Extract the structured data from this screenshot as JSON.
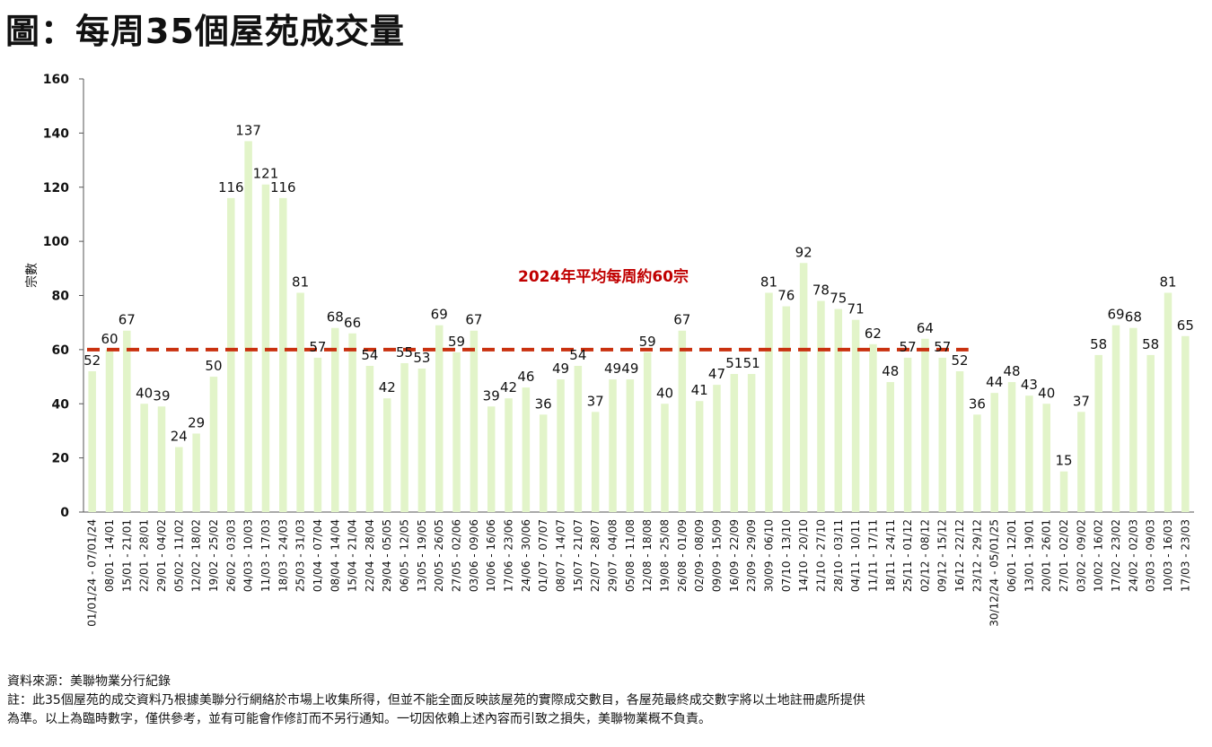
{
  "title": "圖：每周35個屋苑成交量",
  "footer": {
    "source": "資料來源：美聯物業分行紀錄",
    "note_line1": "註：此35個屋苑的成交資料乃根據美聯分行網絡於市場上收集所得，但並不能全面反映該屋苑的實際成交數目，各屋苑最終成交數字將以土地註冊處所提供",
    "note_line2": "為準。以上為臨時數字，僅供參考，並有可能會作修訂而不另行通知。一切因依賴上述內容而引致之損失，美聯物業概不負責。"
  },
  "chart_data": {
    "type": "bar",
    "title": "",
    "xlabel": "",
    "ylabel": "宗數",
    "ylim": [
      0,
      160
    ],
    "yticks": [
      0,
      20,
      40,
      60,
      80,
      100,
      120,
      140,
      160
    ],
    "grid": false,
    "bar_color": "#e2f4c9",
    "reference_line": {
      "value": 60,
      "label": "2024年平均每周約60宗",
      "color": "#c9310f",
      "style": "dashed"
    },
    "categories": [
      "01/01/24 - 07/01/24",
      "08/01 - 14/01",
      "15/01 - 21/01",
      "22/01 - 28/01",
      "29/01 - 04/02",
      "05/02 - 11/02",
      "12/02 - 18/02",
      "19/02 - 25/02",
      "26/02 - 03/03",
      "04/03 - 10/03",
      "11/03 - 17/03",
      "18/03 - 24/03",
      "25/03 - 31/03",
      "01/04 - 07/04",
      "08/04 - 14/04",
      "15/04 - 21/04",
      "22/04 - 28/04",
      "29/04 - 05/05",
      "06/05 - 12/05",
      "13/05 - 19/05",
      "20/05 - 26/05",
      "27/05 - 02/06",
      "03/06 - 09/06",
      "10/06 - 16/06",
      "17/06 - 23/06",
      "24/06 - 30/06",
      "01/07 - 07/07",
      "08/07 - 14/07",
      "15/07 - 21/07",
      "22/07 - 28/07",
      "29/07 - 04/08",
      "05/08 - 11/08",
      "12/08 - 18/08",
      "19/08 - 25/08",
      "26/08 - 01/09",
      "02/09 - 08/09",
      "09/09 - 15/09",
      "16/09 - 22/09",
      "23/09 - 29/09",
      "30/09 - 06/10",
      "07/10 - 13/10",
      "14/10 - 20/10",
      "21/10 - 27/10",
      "28/10 - 03/11",
      "04/11 - 10/11",
      "11/11 - 17/11",
      "18/11 - 24/11",
      "25/11 - 01/12",
      "02/12 - 08/12",
      "09/12 - 15/12",
      "16/12 - 22/12",
      "23/12 - 29/12",
      "30/12/24 - 05/01/25",
      "06/01 - 12/01",
      "13/01 - 19/01",
      "20/01 - 26/01",
      "27/01 - 02/02",
      "03/02 - 09/02",
      "10/02 - 16/02",
      "17/02 - 23/02",
      "24/02 - 02/03",
      "03/03 - 09/03",
      "10/03 - 16/03",
      "17/03 - 23/03"
    ],
    "values": [
      52,
      60,
      67,
      40,
      39,
      24,
      29,
      50,
      116,
      137,
      121,
      116,
      81,
      57,
      68,
      66,
      54,
      42,
      55,
      53,
      69,
      59,
      67,
      39,
      42,
      46,
      36,
      49,
      54,
      37,
      49,
      49,
      59,
      40,
      67,
      41,
      47,
      51,
      51,
      81,
      76,
      92,
      78,
      75,
      71,
      62,
      48,
      57,
      64,
      57,
      52,
      36,
      44,
      48,
      43,
      40,
      15,
      37,
      58,
      69,
      68,
      58,
      81,
      65
    ]
  }
}
